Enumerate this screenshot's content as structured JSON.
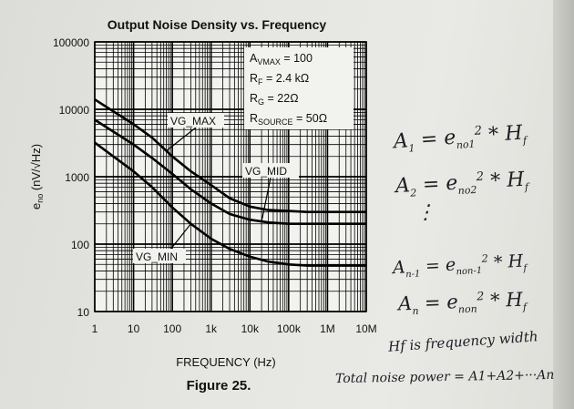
{
  "chart_data": {
    "type": "line",
    "title": "Output Noise Density vs. Frequency",
    "xlabel": "FREQUENCY (Hz)",
    "ylabel": "eno (nV/√Hz)",
    "ylabel_main": "e",
    "ylabel_sub": "no",
    "ylabel_rest": " (nV/√Hz)",
    "x_scale": "log",
    "y_scale": "log",
    "xlim": [
      1,
      10000000
    ],
    "ylim": [
      10,
      100000
    ],
    "x_tick_values": [
      1,
      10,
      100,
      1000,
      10000,
      100000,
      1000000,
      10000000
    ],
    "x_tick_labels": [
      "1",
      "10",
      "100",
      "1k",
      "10k",
      "100k",
      "1M",
      "10M"
    ],
    "y_tick_values": [
      10,
      100,
      1000,
      10000,
      100000
    ],
    "y_tick_labels": [
      "10",
      "100",
      "1000",
      "10000",
      "100000"
    ],
    "grid": true,
    "x": [
      1,
      10,
      30,
      100,
      300,
      1000,
      3000,
      10000,
      30000,
      100000,
      300000,
      1000000,
      10000000
    ],
    "series": [
      {
        "name": "VG_MAX",
        "values": [
          14000,
          6000,
          3800,
          2000,
          1200,
          750,
          480,
          360,
          320,
          310,
          300,
          300,
          300
        ]
      },
      {
        "name": "VG_MID",
        "values": [
          7000,
          3000,
          1900,
          1100,
          650,
          400,
          280,
          230,
          210,
          200,
          200,
          200,
          200
        ]
      },
      {
        "name": "VG_MIN",
        "values": [
          3200,
          1200,
          700,
          350,
          200,
          120,
          85,
          65,
          55,
          50,
          48,
          48,
          48
        ]
      }
    ],
    "annotations": [
      "AVMAX = 100",
      "RF = 2.4 kΩ",
      "RG = 22Ω",
      "RSOURCE = 50Ω"
    ],
    "caption": "Figure 25."
  },
  "annotation_parts": [
    {
      "main": "A",
      "sub": "VMAX",
      "rest": " = 100"
    },
    {
      "main": "R",
      "sub": "F",
      "rest": " = 2.4 kΩ"
    },
    {
      "main": "R",
      "sub": "G",
      "rest": " = 22Ω"
    },
    {
      "main": "R",
      "sub": "SOURCE",
      "rest": " = 50Ω"
    }
  ],
  "handwritten": {
    "line1": {
      "left": "A",
      "left_sub": "1",
      "mid": "= e",
      "mid_sub": "no1",
      "sup": "2",
      "right": "* H",
      "right_sub": "f"
    },
    "line2": {
      "left": "A",
      "left_sub": "2",
      "mid": "= e",
      "mid_sub": "no2",
      "sup": "2",
      "right": "* H",
      "right_sub": "f"
    },
    "dots": "⋮",
    "line3": {
      "left": "A",
      "left_sub": "n-1",
      "mid": "= e",
      "mid_sub": "non-1",
      "sup": "2",
      "right": "* H",
      "right_sub": "f"
    },
    "line4": {
      "left": "A",
      "left_sub": "n",
      "mid": "= e",
      "mid_sub": "non",
      "sup": "2",
      "right": "* H",
      "right_sub": "f"
    },
    "line5": "Hf is frequency width",
    "line6": "Total noise power = A1+A2+···An"
  }
}
